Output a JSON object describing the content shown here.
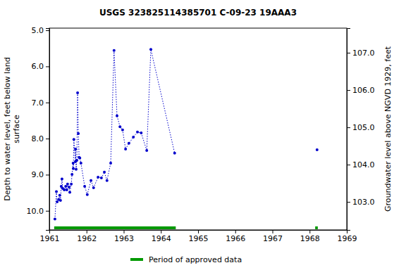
{
  "chart_data": {
    "type": "line",
    "title": "USGS 323825114385701 C-09-23 19AAA3",
    "ylabel": "Depth to water level, feet below land\nsurface",
    "y2label": "Groundwater level above NGVD 1929, feet",
    "xlim": [
      1961,
      1969
    ],
    "xticks": [
      1961,
      1962,
      1963,
      1964,
      1965,
      1966,
      1967,
      1968,
      1969
    ],
    "ylim": [
      4.94,
      10.53
    ],
    "yticks": [
      {
        "value": 5,
        "label": "5.0"
      },
      {
        "value": 6,
        "label": "6.0"
      },
      {
        "value": 7,
        "label": "7.0"
      },
      {
        "value": 8,
        "label": "8.0"
      },
      {
        "value": 9,
        "label": "9.0"
      },
      {
        "value": 10,
        "label": "10.0"
      }
    ],
    "y2lim": [
      107.66,
      102.25
    ],
    "y2ticks": [
      {
        "value": 103,
        "label": "103.0"
      },
      {
        "value": 104,
        "label": "104.0"
      },
      {
        "value": 105,
        "label": "105.0"
      },
      {
        "value": 106,
        "label": "106.0"
      },
      {
        "value": 107,
        "label": "107.0"
      }
    ],
    "series": [
      {
        "color": "#0000cc",
        "marker": "circle",
        "line_style": "dotted",
        "x": [
          1961.15,
          1961.19,
          1961.21,
          1961.25,
          1961.28,
          1961.3,
          1961.32,
          1961.34,
          1961.36,
          1961.4,
          1961.44,
          1961.47,
          1961.49,
          1961.53,
          1961.55,
          1961.59,
          1961.61,
          1961.64,
          1961.645,
          1961.66,
          1961.7,
          1961.705,
          1961.72,
          1961.74,
          1961.76,
          1961.78,
          1961.8,
          1961.82,
          1961.85,
          1961.95,
          1962.02,
          1962.12,
          1962.19,
          1962.31,
          1962.4,
          1962.48,
          1962.55,
          1962.65,
          1962.74,
          1962.82,
          1962.9,
          1962.97,
          1963.05,
          1963.14,
          1963.26,
          1963.37,
          1963.47,
          1963.62,
          1963.73,
          1964.37
        ],
        "values": [
          10.23,
          9.47,
          9.75,
          9.69,
          9.57,
          9.71,
          9.32,
          9.12,
          9.38,
          9.42,
          9.32,
          9.42,
          9.26,
          9.34,
          9.49,
          9.26,
          8.99,
          8.68,
          8.83,
          8.02,
          8.64,
          8.29,
          8.85,
          8.6,
          6.73,
          7.86,
          8.52,
          8.54,
          8.68,
          9.32,
          9.55,
          9.16,
          9.36,
          9.07,
          9.09,
          8.93,
          9.16,
          8.68,
          5.56,
          7.37,
          7.67,
          7.76,
          8.29,
          8.13,
          7.96,
          7.82,
          7.84,
          8.33,
          5.53,
          8.4
        ]
      },
      {
        "color": "#0000cc",
        "marker": "circle",
        "line_style": "dotted",
        "x": [
          1968.2
        ],
        "values": [
          8.31
        ]
      }
    ],
    "approved_periods": [
      [
        1961.13,
        1964.4
      ],
      [
        1968.15,
        1968.22
      ]
    ],
    "approved_color": "#009900",
    "approved_label": "Period of approved data",
    "legend": "bottom"
  }
}
